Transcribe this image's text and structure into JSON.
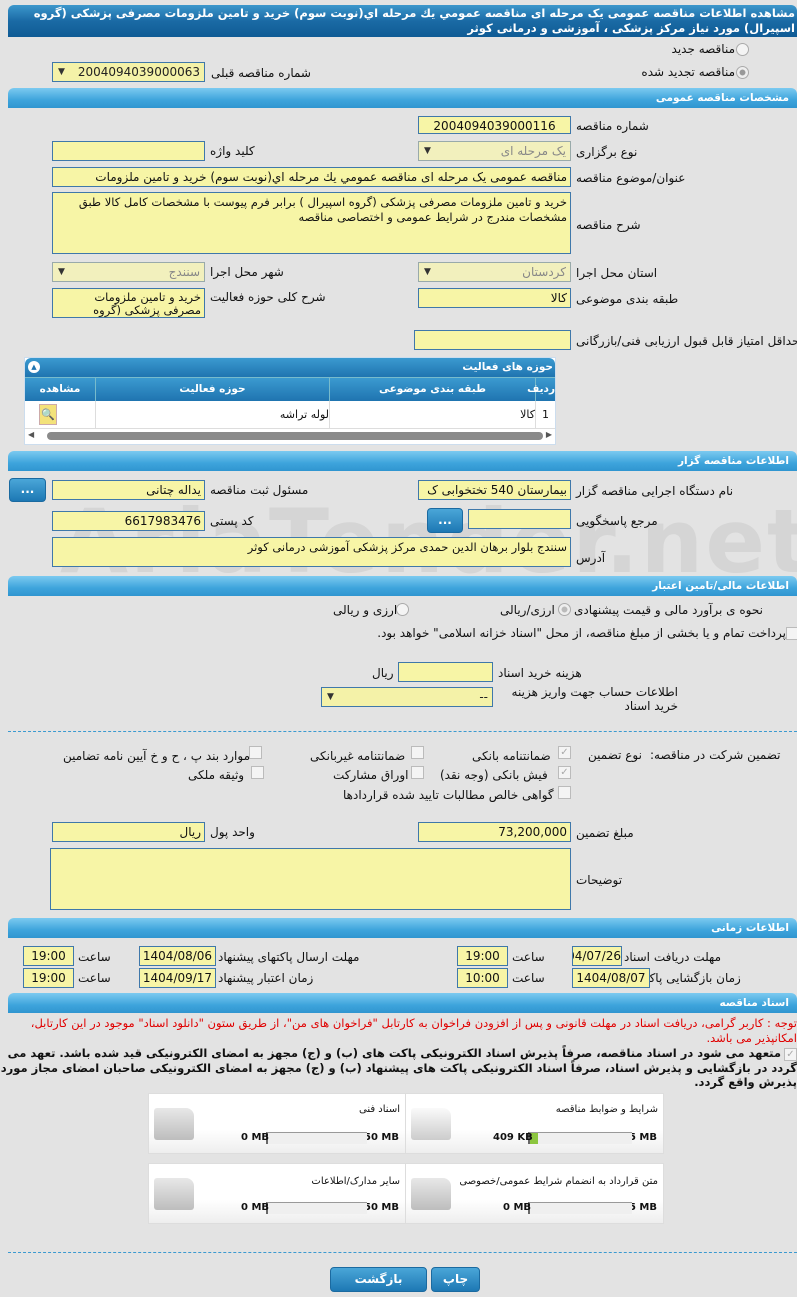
{
  "header": {
    "title": "مشاهده اطلاعات مناقصه عمومی یک مرحله ای مناقصه عمومي يك مرحله اي(نوبت سوم) خريد و تامين ملزومات مصرفی پزشکی (گروه اسپیرال) مورد نیاز مرکز پزشکی ، آموزشی و درمانی کوثر"
  },
  "tender_type": {
    "new_label": "مناقصه جدید",
    "renewed_label": "مناقصه تجدید شده",
    "selected": "renewed",
    "prev_number_label": "شماره مناقصه قبلی",
    "prev_number": "2004094039000063"
  },
  "general": {
    "section_title": "مشخصات مناقصه عمومی",
    "number_label": "شماره مناقصه",
    "number": "2004094039000116",
    "holding_type_label": "نوع برگزاری",
    "holding_type": "یک مرحله ای",
    "keyword_label": "کلید واژه",
    "keyword": "",
    "subject_label": "عنوان/موضوع مناقصه",
    "subject": "مناقصه عمومی یک مرحله ای مناقصه عمومي يك مرحله اي(نوبت سوم) خريد و تامين ملزومات",
    "description_label": "شرح مناقصه",
    "description": "خرید و تامین ملزومات مصرفی پزشکی (گروه اسپیرال ) برابر فرم پیوست با مشخصات کامل کالا طبق مشخصات مندرج در شرایط عمومی و اختصاصی مناقصه",
    "province_label": "استان محل اجرا",
    "province": "کردستان",
    "city_label": "شهر محل اجرا",
    "city": "سنندج",
    "category_label": "طبقه بندی موضوعی",
    "category": "کالا",
    "activity_desc_label": "شرح کلی حوزه فعالیت",
    "activity_desc": "خرید و تامین ملزومات مصرفی پزشکی (گروه",
    "min_score_label": "حداقل امتیاز قابل قبول ارزیابی فنی/بازرگانی",
    "min_score": ""
  },
  "activities": {
    "title": "حوزه های فعالیت",
    "columns": [
      "ردیف",
      "طبقه بندی موضوعی",
      "حوزه فعالیت",
      "مشاهده"
    ],
    "rows": [
      {
        "index": "1",
        "category": "کالا",
        "field": "لوله تراشه"
      }
    ]
  },
  "organizer": {
    "section_title": "اطلاعات مناقصه گزار",
    "org_label": "نام دستگاه اجرایی مناقصه گزار",
    "org": "بیمارستان 540 تختخوابی ک",
    "registrar_label": "مسئول ثبت مناقصه",
    "registrar": "یداله چتانی",
    "ref_label": "مرجع پاسخگویی",
    "ref": "",
    "postal_label": "کد پستی",
    "postal": "6617983476",
    "address_label": "آدرس",
    "address": "سنندج بلوار برهان الدین حمدی مرکز پزشکی آموزشی درمانی کوثر",
    "more_button": "..."
  },
  "financial": {
    "section_title": "اطلاعات مالی/تامین اعتبار",
    "estimate_label": "نحوه ی برآورد مالی و قیمت پیشنهادی",
    "opt1": "ارزی/ریالی",
    "opt2": "ارزی و ریالی",
    "treasury_text": "پرداخت تمام و یا بخشی از مبلغ مناقصه، از محل \"اسناد خزانه اسلامی\" خواهد بود.",
    "doc_cost_label": "هزینه خرید اسناد",
    "doc_cost": "",
    "doc_cost_unit": "ریال",
    "account_label": "اطلاعات حساب جهت واریز هزینه خرید اسناد",
    "account": "--"
  },
  "guarantee": {
    "label": "تضمین شرکت در مناقصه:",
    "type_label": "نوع تضمین",
    "options": [
      {
        "label": "ضمانتنامه بانکی",
        "checked": true
      },
      {
        "label": "ضمانتنامه غیربانکی",
        "checked": false
      },
      {
        "label": "موارد بند پ ، ح و خ آیین نامه تضامین",
        "checked": false
      },
      {
        "label": "فیش بانکی (وجه نقد)",
        "checked": true
      },
      {
        "label": "اوراق مشارکت",
        "checked": false
      },
      {
        "label": "وثیقه ملکی",
        "checked": false
      },
      {
        "label": "گواهی خالص مطالبات تایید شده قراردادها",
        "checked": false
      }
    ],
    "amount_label": "مبلغ تضمین",
    "amount": "73,200,000",
    "currency_label": "واحد پول",
    "currency": "ریال",
    "notes_label": "توضیحات",
    "notes": ""
  },
  "timing": {
    "section_title": "اطلاعات زمانی",
    "hour_label": "ساعت",
    "doc_deadline_label": "مهلت دریافت اسناد",
    "doc_deadline": "1404/07/26",
    "doc_deadline_time": "19:00",
    "submit_deadline_label": "مهلت ارسال پاکتهای پیشنهاد",
    "submit_deadline": "1404/08/06",
    "submit_deadline_time": "19:00",
    "opening_label": "زمان بازگشایی پاکت ها",
    "opening": "1404/08/07",
    "opening_time": "10:00",
    "validity_label": "زمان اعتبار پیشنهاد",
    "validity": "1404/09/17",
    "validity_time": "19:00"
  },
  "documents": {
    "section_title": "اسناد مناقصه",
    "notice": "توجه : کاربر گرامی، دریافت اسناد در مهلت قانونی و پس از افزودن فراخوان به کارتابل \"فراخوان های من\"، از طریق ستون \"دانلود اسناد\" موجود در این کارتابل، امکانپذیر می باشد.",
    "commitment": "متعهد می شود در اسناد مناقصه، صرفاً پذیرش اسناد الکترونیکی پاکت های (ب) و (ج) مجهز به امضای الکترونیکی قید شده باشد. تعهد می گردد در بازگشایی و پذیرش اسناد، صرفاً اسناد الکترونیکی پاکت های پیشنهاد (ب) و (ج) مجهز به امضای الکترونیکی صاحبان امضای مجاز مورد پذیرش واقع گردد.",
    "items": [
      {
        "title": "شرایط و ضوابط مناقصه",
        "size": "409 KB",
        "max": "5 MB",
        "fill": 0.08
      },
      {
        "title": "اسناد فنی",
        "size": "0 MB",
        "max": "50 MB",
        "fill": 0
      },
      {
        "title": "متن قرارداد به انضمام شرایط عمومی/خصوصی",
        "size": "0 MB",
        "max": "5 MB",
        "fill": 0
      },
      {
        "title": "سایر مدارک/اطلاعات",
        "size": "0 MB",
        "max": "50 MB",
        "fill": 0
      }
    ]
  },
  "buttons": {
    "print": "چاپ",
    "back": "بازگشت"
  },
  "watermark": "AriaTender.net",
  "colors": {
    "input_bg": "#f7f5a6",
    "section": "#3ea4dc",
    "header": "#1e6fa8",
    "notice": "#e00000",
    "progress": "#8cc63f"
  }
}
